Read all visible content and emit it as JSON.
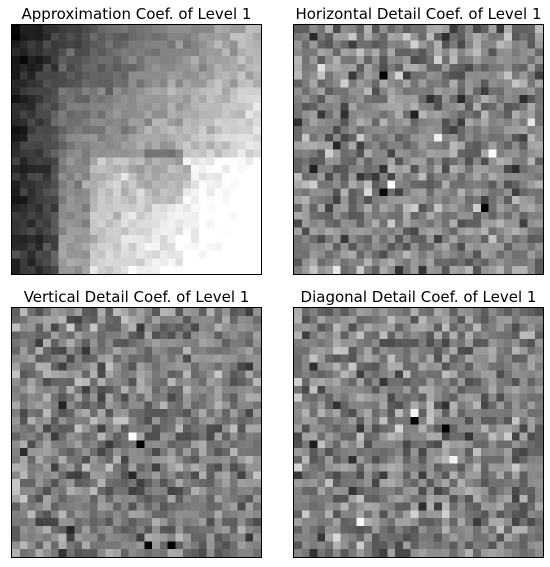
{
  "figure": {
    "panels": [
      {
        "title": "Approximation Coef. of Level 1"
      },
      {
        "title": "Horizontal Detail Coef. of Level 1"
      },
      {
        "title": "Vertical Detail Coef. of Level 1"
      },
      {
        "title": "Diagonal Detail Coef. of Level 1"
      }
    ]
  },
  "chart_data": [
    {
      "type": "heatmap",
      "title": "Approximation Coef. of Level 1",
      "grid": false,
      "colormap": "gray",
      "resolution": [
        32,
        32
      ],
      "description_pattern": "smooth-gradient",
      "axes_visible": false
    },
    {
      "type": "heatmap",
      "title": "Horizontal Detail Coef. of Level 1",
      "grid": false,
      "colormap": "gray",
      "resolution": [
        32,
        32
      ],
      "description_pattern": "noise-horizontal",
      "axes_visible": false
    },
    {
      "type": "heatmap",
      "title": "Vertical Detail Coef. of Level 1",
      "grid": false,
      "colormap": "gray",
      "resolution": [
        32,
        32
      ],
      "description_pattern": "noise-vertical",
      "axes_visible": false
    },
    {
      "type": "heatmap",
      "title": "Diagonal Detail Coef. of Level 1",
      "grid": false,
      "colormap": "gray",
      "resolution": [
        32,
        32
      ],
      "description_pattern": "noise-diagonal",
      "axes_visible": false
    }
  ]
}
